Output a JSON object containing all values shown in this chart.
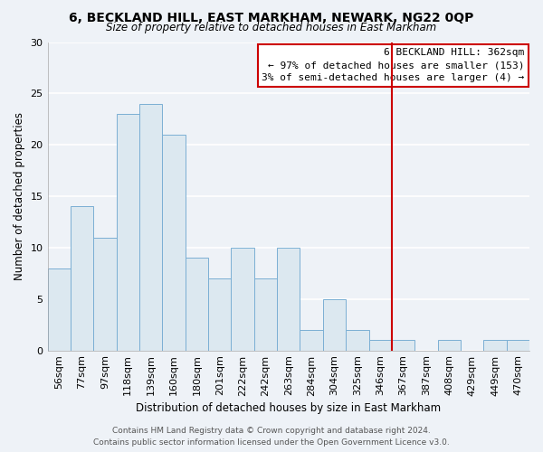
{
  "title": "6, BECKLAND HILL, EAST MARKHAM, NEWARK, NG22 0QP",
  "subtitle": "Size of property relative to detached houses in East Markham",
  "xlabel": "Distribution of detached houses by size in East Markham",
  "ylabel": "Number of detached properties",
  "bin_labels": [
    "56sqm",
    "77sqm",
    "97sqm",
    "118sqm",
    "139sqm",
    "160sqm",
    "180sqm",
    "201sqm",
    "222sqm",
    "242sqm",
    "263sqm",
    "284sqm",
    "304sqm",
    "325sqm",
    "346sqm",
    "367sqm",
    "387sqm",
    "408sqm",
    "429sqm",
    "449sqm",
    "470sqm"
  ],
  "bar_heights": [
    8,
    14,
    11,
    23,
    24,
    21,
    9,
    7,
    10,
    7,
    10,
    2,
    5,
    2,
    1,
    1,
    0,
    1,
    0,
    1,
    1
  ],
  "bar_color": "#dce8f0",
  "bar_edge_color": "#7bafd4",
  "vline_color": "#cc0000",
  "vline_bin_index": 15,
  "ylim": [
    0,
    30
  ],
  "yticks": [
    0,
    5,
    10,
    15,
    20,
    25,
    30
  ],
  "annotation_title": "6 BECKLAND HILL: 362sqm",
  "annotation_line1": "← 97% of detached houses are smaller (153)",
  "annotation_line2": "3% of semi-detached houses are larger (4) →",
  "annotation_box_color": "#ffffff",
  "annotation_box_edge": "#cc0000",
  "footer1": "Contains HM Land Registry data © Crown copyright and database right 2024.",
  "footer2": "Contains public sector information licensed under the Open Government Licence v3.0.",
  "background_color": "#eef2f7",
  "grid_color": "#ffffff",
  "title_fontsize": 10,
  "subtitle_fontsize": 8.5,
  "ylabel_fontsize": 8.5,
  "xlabel_fontsize": 8.5,
  "tick_fontsize": 8,
  "ann_fontsize": 8,
  "footer_fontsize": 6.5
}
